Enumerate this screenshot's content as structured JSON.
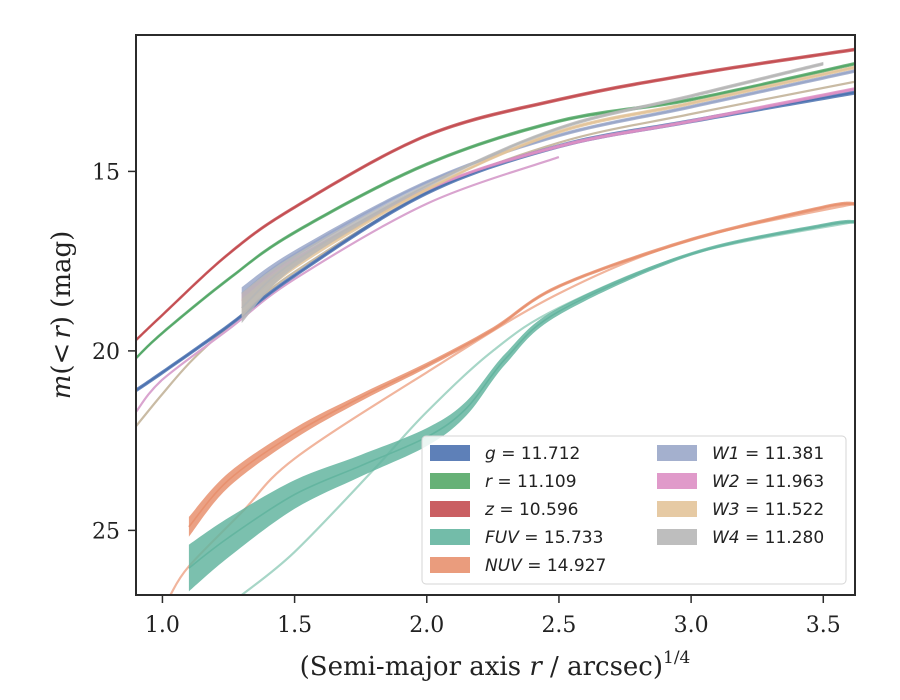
{
  "chart_data": {
    "type": "line",
    "title": "",
    "xlabel": "(Semi-major axis r / arcsec)^{1/4}",
    "xlabel_parts": {
      "main": "(Semi-major axis ",
      "var": "r",
      "rest": " / arcsec)",
      "sup": "1/4"
    },
    "ylabel": "m(< r) (mag)",
    "ylabel_parts": {
      "m": "m",
      "open": "(",
      "lt": "<",
      "r": "r",
      "close": ")",
      "unit": " (mag)"
    },
    "xlim": [
      0.9,
      3.62
    ],
    "ylim": [
      26.8,
      11.2
    ],
    "y_inverted": true,
    "grid": false,
    "legend_position": "lower-right",
    "legend_columns": 2,
    "x_ticks": [
      1.0,
      1.5,
      2.0,
      2.5,
      3.0,
      3.5
    ],
    "x_tick_labels": [
      "1.0",
      "1.5",
      "2.0",
      "2.5",
      "3.0",
      "3.5"
    ],
    "y_ticks": [
      15,
      20,
      25
    ],
    "y_tick_labels": [
      "15",
      "20",
      "25"
    ],
    "series": [
      {
        "name": "g = 11.712",
        "label_var": "g",
        "label_value": "11.712",
        "color": "#4c72b0",
        "x": [
          0.9,
          1.0,
          1.25,
          1.5,
          2.0,
          2.5,
          3.0,
          3.62
        ],
        "y": [
          21.1,
          20.6,
          19.3,
          17.9,
          15.6,
          14.3,
          13.6,
          12.8
        ],
        "bandwidth": 0.12
      },
      {
        "name": "r = 11.109",
        "label_var": "r",
        "label_value": "11.109",
        "color": "#55a868",
        "x": [
          0.9,
          1.0,
          1.25,
          1.5,
          2.0,
          2.5,
          3.0,
          3.62
        ],
        "y": [
          20.2,
          19.5,
          18.0,
          16.7,
          14.8,
          13.6,
          13.0,
          12.0
        ],
        "bandwidth": 0.1
      },
      {
        "name": "z = 10.596",
        "label_var": "z",
        "label_value": "10.596",
        "color": "#c44e52",
        "x": [
          0.9,
          1.0,
          1.25,
          1.5,
          2.0,
          2.5,
          3.0,
          3.62
        ],
        "y": [
          19.7,
          19.0,
          17.3,
          16.0,
          14.0,
          13.0,
          12.3,
          11.6
        ],
        "bandwidth": 0.1
      },
      {
        "name": "FUV = 15.733",
        "label_var": "FUV",
        "label_value": "15.733",
        "color": "#64b5a0",
        "x": [
          1.1,
          1.25,
          1.5,
          1.75,
          2.0,
          2.15,
          2.3,
          2.5,
          3.0,
          3.5,
          3.62
        ],
        "y": [
          26.05,
          25.2,
          24.0,
          23.2,
          22.4,
          21.6,
          20.2,
          18.9,
          17.3,
          16.5,
          16.4
        ],
        "bandwidth": [
          1.3,
          1.1,
          0.8,
          0.6,
          0.5,
          0.4,
          0.3,
          0.2,
          0.1,
          0.1,
          0.1
        ]
      },
      {
        "name": "NUV = 14.927",
        "label_var": "NUV",
        "label_value": "14.927",
        "color": "#e8916f",
        "x": [
          1.1,
          1.25,
          1.5,
          1.75,
          2.0,
          2.25,
          2.5,
          3.0,
          3.5,
          3.62
        ],
        "y": [
          24.9,
          23.6,
          22.3,
          21.3,
          20.4,
          19.4,
          18.2,
          16.9,
          16.0,
          15.9
        ],
        "bandwidth": [
          0.55,
          0.4,
          0.3,
          0.2,
          0.15,
          0.12,
          0.1,
          0.1,
          0.1,
          0.1
        ]
      },
      {
        "name": "W1 = 11.381",
        "label_var": "W1",
        "label_value": "11.381",
        "color": "#9aa7c9",
        "x": [
          1.3,
          1.5,
          2.0,
          2.5,
          3.0,
          3.62
        ],
        "y": [
          18.4,
          17.3,
          15.3,
          14.0,
          13.2,
          12.2
        ],
        "bandwidth": [
          0.35,
          0.2,
          0.1,
          0.1,
          0.1,
          0.1
        ]
      },
      {
        "name": "W2 = 11.963",
        "label_var": "W2",
        "label_value": "11.963",
        "color": "#dd8fc4",
        "x": [
          1.3,
          1.5,
          2.0,
          2.5,
          3.0,
          3.62
        ],
        "y": [
          18.6,
          17.5,
          15.5,
          14.3,
          13.6,
          12.7
        ],
        "bandwidth": [
          0.4,
          0.2,
          0.1,
          0.1,
          0.1,
          0.1
        ]
      },
      {
        "name": "W3 = 11.522",
        "label_var": "W3",
        "label_value": "11.522",
        "color": "#e3c49a",
        "x": [
          1.3,
          1.5,
          2.0,
          2.5,
          3.0,
          3.62
        ],
        "y": [
          18.8,
          17.6,
          15.5,
          13.9,
          13.1,
          12.1
        ],
        "bandwidth": [
          0.5,
          0.25,
          0.1,
          0.1,
          0.1,
          0.1
        ]
      },
      {
        "name": "W4 = 11.280",
        "label_var": "W4",
        "label_value": "11.280",
        "color": "#b7b7b7",
        "x": [
          1.3,
          1.5,
          2.0,
          2.5,
          3.0,
          3.5
        ],
        "y": [
          18.8,
          17.5,
          15.4,
          13.8,
          12.9,
          12.0
        ],
        "bandwidth": [
          0.85,
          0.35,
          0.12,
          0.1,
          0.1,
          0.1
        ]
      }
    ],
    "model_curves": [
      {
        "color": "#c9bba4",
        "x": [
          0.9,
          1.0,
          1.12,
          1.3,
          1.5,
          2.0,
          2.5,
          3.0,
          3.62
        ],
        "y": [
          22.1,
          21.2,
          20.2,
          19.0,
          17.8,
          15.6,
          14.2,
          13.4,
          12.5
        ]
      },
      {
        "color": "#d9a4cf",
        "x": [
          0.9,
          1.0,
          1.25,
          1.5,
          2.0,
          2.5
        ],
        "y": [
          21.7,
          20.8,
          19.4,
          18.0,
          15.9,
          14.6
        ]
      },
      {
        "color": "#f1b59d",
        "x": [
          1.03,
          1.1,
          1.3,
          1.5,
          2.0,
          2.5,
          3.0,
          3.62
        ],
        "y": [
          26.8,
          26.0,
          24.5,
          23.0,
          20.6,
          18.4,
          16.9,
          15.9
        ]
      },
      {
        "color": "#a7d6c7",
        "x": [
          1.3,
          1.5,
          1.8,
          2.0,
          2.25,
          2.5,
          3.0,
          3.62
        ],
        "y": [
          26.8,
          25.6,
          23.3,
          21.7,
          20.0,
          18.8,
          17.3,
          16.4
        ]
      }
    ]
  }
}
